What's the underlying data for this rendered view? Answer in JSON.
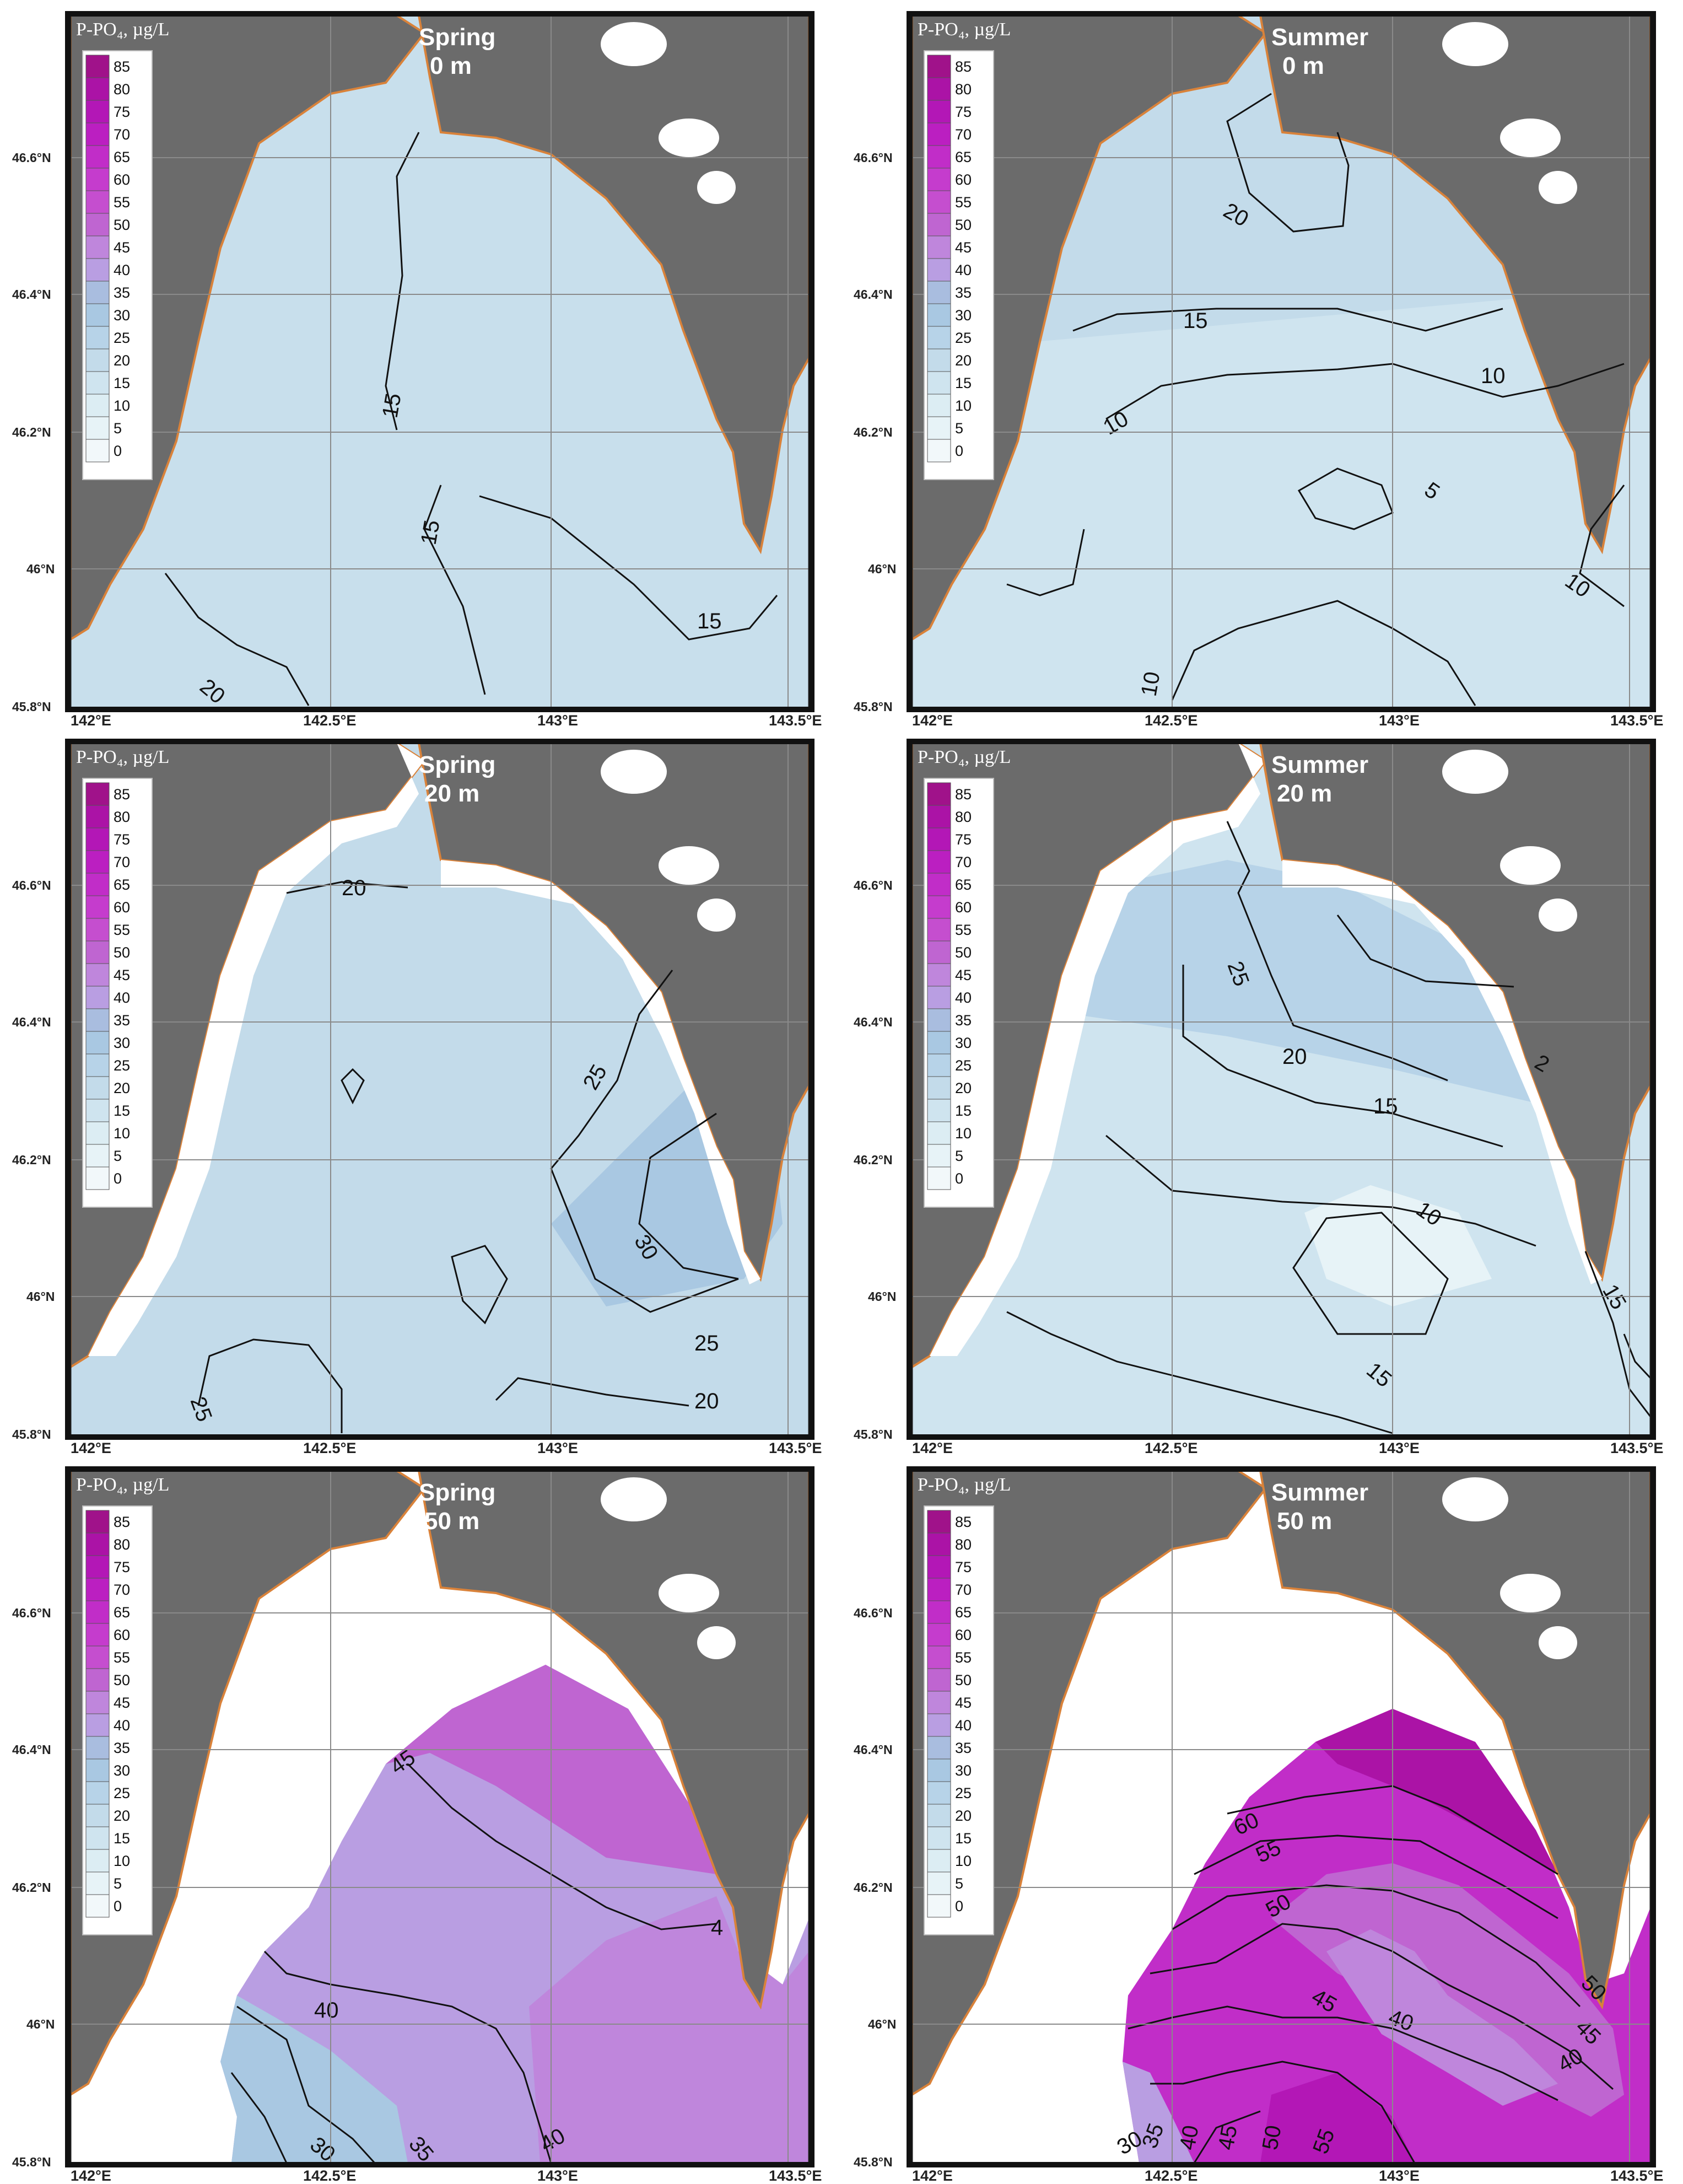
{
  "legend": {
    "title": "P-PO₄, µg/L",
    "levels": [
      "85",
      "80",
      "75",
      "70",
      "65",
      "60",
      "55",
      "50",
      "45",
      "40",
      "35",
      "30",
      "25",
      "20",
      "15",
      "10",
      "5",
      "0"
    ],
    "colors": [
      "#a0128a",
      "#ab13a6",
      "#b317b6",
      "#bb1fc1",
      "#c12dc8",
      "#c53ccd",
      "#c54ecf",
      "#bf65d1",
      "#bf86dc",
      "#b99ee2",
      "#a9bddf",
      "#a9c8e2",
      "#b7d3e8",
      "#c3dbea",
      "#cfe4ef",
      "#dcedf3",
      "#e7f3f7",
      "#f2f8fa"
    ]
  },
  "axes": {
    "lat_labels": [
      "46.6°N",
      "46.4°N",
      "46.2°N",
      "46°N",
      "45.8°N"
    ],
    "lon_labels": [
      "142°E",
      "142.5°E",
      "143°E",
      "143.5°E"
    ]
  },
  "colors": {
    "land": "#6b6b6b",
    "coastline": "#d9823a"
  },
  "panels": [
    {
      "season": "Spring",
      "depth": "0 m",
      "contour_labels": [
        "15",
        "15",
        "15",
        "20"
      ]
    },
    {
      "season": "Summer",
      "depth": "0 m",
      "contour_labels": [
        "20",
        "15",
        "10",
        "10",
        "5",
        "10",
        "10"
      ]
    },
    {
      "season": "Spring",
      "depth": "20 m",
      "contour_labels": [
        "20",
        "25",
        "30",
        "25",
        "20",
        "25"
      ]
    },
    {
      "season": "Summer",
      "depth": "20 m",
      "contour_labels": [
        "25",
        "20",
        "2",
        "15",
        "10",
        "15",
        "15"
      ]
    },
    {
      "season": "Spring",
      "depth": "50 m",
      "contour_labels": [
        "45",
        "40",
        "4",
        "30",
        "35",
        "40"
      ]
    },
    {
      "season": "Summer",
      "depth": "50 m",
      "contour_labels": [
        "60",
        "55",
        "50",
        "45",
        "40",
        "50",
        "45",
        "40",
        "30",
        "35",
        "40",
        "45",
        "50",
        "55"
      ]
    }
  ]
}
